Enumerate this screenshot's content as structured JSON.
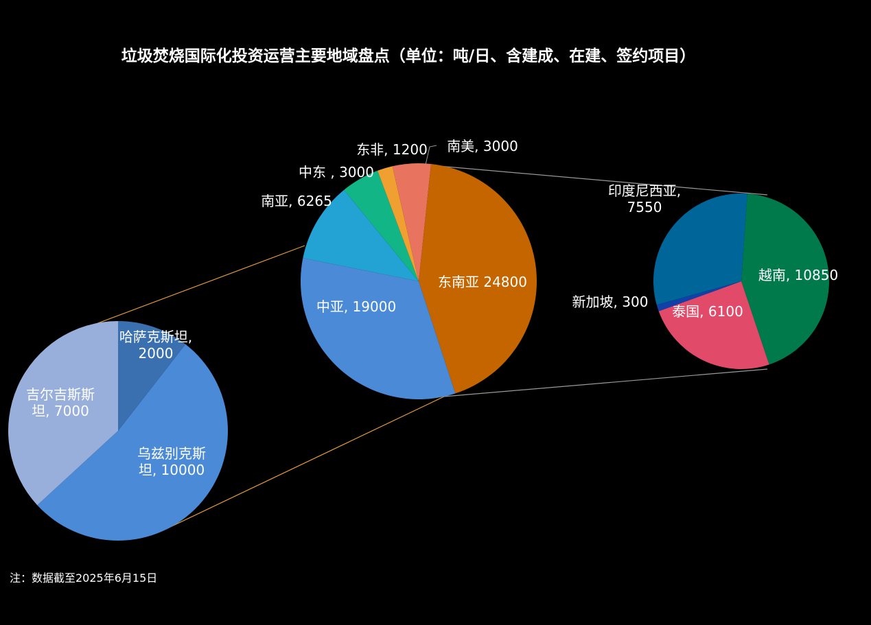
{
  "title": "垃圾焚烧国际化投资运营主要地域盘点（单位：吨/日、含建成、在建、签约项目）",
  "note": "注：数据截至2025年6月15日",
  "chart_data": [
    {
      "type": "pie",
      "role": "main",
      "slices": [
        {
          "name": "东南亚",
          "value": 24800,
          "label": "东南亚 24800",
          "color": "#C46500"
        },
        {
          "name": "中亚",
          "value": 19000,
          "label": "中亚, 19000",
          "color": "#4A8AD6"
        },
        {
          "name": "南亚",
          "value": 6265,
          "label": "南亚, 6265",
          "color": "#22A3D3"
        },
        {
          "name": "中东",
          "value": 3000,
          "label": "中东 , 3000",
          "color": "#12B585"
        },
        {
          "name": "东非",
          "value": 1200,
          "label": "东非, 1200",
          "color": "#F0A030"
        },
        {
          "name": "南美",
          "value": 3000,
          "label": "南美, 3000",
          "color": "#E8735F"
        }
      ]
    },
    {
      "type": "pie",
      "role": "breakdown",
      "of": "中亚",
      "slices": [
        {
          "name": "哈萨克斯坦",
          "value": 2000,
          "label": [
            "哈萨克斯坦,",
            "2000"
          ],
          "color": "#3A6FB0"
        },
        {
          "name": "乌兹别克斯坦",
          "value": 10000,
          "label": [
            "乌兹别克斯",
            "坦, 10000"
          ],
          "color": "#4A8AD6"
        },
        {
          "name": "吉尔吉斯斯坦",
          "value": 7000,
          "label": [
            "吉尔吉斯斯",
            "坦, 7000"
          ],
          "color": "#98AEDB"
        }
      ]
    },
    {
      "type": "pie",
      "role": "breakdown",
      "of": "东南亚",
      "slices": [
        {
          "name": "越南",
          "value": 10850,
          "label": [
            "越南, 10850"
          ],
          "color": "#017A4B"
        },
        {
          "name": "泰国",
          "value": 6100,
          "label": [
            "泰国, 6100"
          ],
          "color": "#E24A6A"
        },
        {
          "name": "新加坡",
          "value": 300,
          "label": [
            "新加坡, 300"
          ],
          "color": "#1040A8"
        },
        {
          "name": "印度尼西亚",
          "value": 7550,
          "label": [
            "印度尼西亚,",
            "7550"
          ],
          "color": "#006699"
        }
      ]
    }
  ],
  "connector_colors": {
    "central_asia": "#E59A3A",
    "southeast_asia": "#9A9A9A"
  }
}
